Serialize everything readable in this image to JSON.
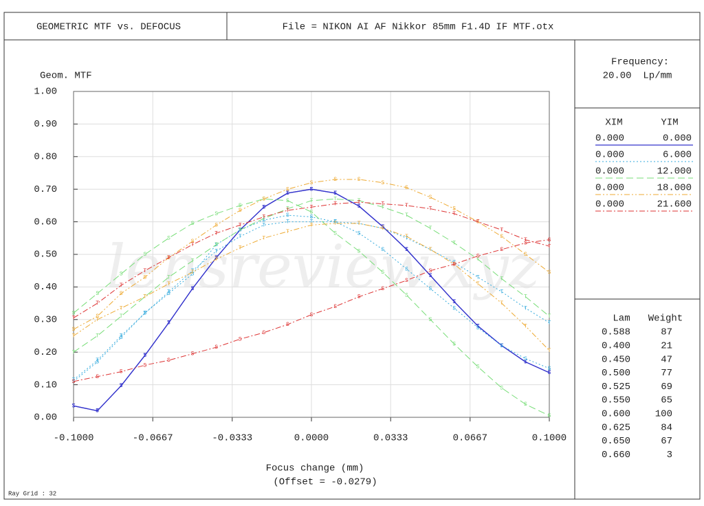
{
  "chart_data": {
    "type": "line",
    "title": "GEOMETRIC MTF vs. DEFOCUS",
    "file": "File = NIKON AI AF Nikkor 85mm F1.4D IF MTF.otx",
    "y_label": "Geom. MTF",
    "x_label": "Focus change (mm)",
    "x_note": "(Offset = -0.0279)",
    "footer": "Ray Grid : 32",
    "watermark": "lensreview.xyz",
    "frequency_label": "Frequency:",
    "frequency_value": "20.00  Lp/mm",
    "grid": true,
    "xlim": [
      -0.1,
      0.1
    ],
    "ylim": [
      0,
      1
    ],
    "xticks": [
      {
        "value": -0.1,
        "label": "-0.1000"
      },
      {
        "value": -0.0667,
        "label": "-0.0667"
      },
      {
        "value": -0.0333,
        "label": "-0.0333"
      },
      {
        "value": 0,
        "label": "0.0000"
      },
      {
        "value": 0.0333,
        "label": "0.0333"
      },
      {
        "value": 0.0667,
        "label": "0.0667"
      },
      {
        "value": 0.1,
        "label": "0.1000"
      }
    ],
    "yticks": [
      {
        "value": 0,
        "label": "0.00"
      },
      {
        "value": 0.1,
        "label": "0.10"
      },
      {
        "value": 0.2,
        "label": "0.20"
      },
      {
        "value": 0.3,
        "label": "0.30"
      },
      {
        "value": 0.4,
        "label": "0.40"
      },
      {
        "value": 0.5,
        "label": "0.50"
      },
      {
        "value": 0.6,
        "label": "0.60"
      },
      {
        "value": 0.7,
        "label": "0.70"
      },
      {
        "value": 0.8,
        "label": "0.80"
      },
      {
        "value": 0.9,
        "label": "0.90"
      },
      {
        "value": 1,
        "label": "1.00"
      }
    ],
    "x": [
      -0.1,
      -0.09,
      -0.08,
      -0.07,
      -0.06,
      -0.05,
      -0.04,
      -0.03,
      -0.02,
      -0.01,
      0,
      0.01,
      0.02,
      0.03,
      0.04,
      0.05,
      0.06,
      0.07,
      0.08,
      0.09,
      0.1
    ],
    "legend": {
      "headers": [
        "XIM",
        "YIM"
      ],
      "rows": [
        {
          "xim": "0.000",
          "yim": "0.000",
          "color": "#3333cc",
          "dash": "none"
        },
        {
          "xim": "0.000",
          "yim": "6.000",
          "color": "#33aadd",
          "dash": "2 3"
        },
        {
          "xim": "0.000",
          "yim": "12.000",
          "color": "#77dd77",
          "dash": "10 5"
        },
        {
          "xim": "0.000",
          "yim": "18.000",
          "color": "#eeaa33",
          "dash": "8 3 2 3 2 3"
        },
        {
          "xim": "0.000",
          "yim": "21.600",
          "color": "#dd3333",
          "dash": "8 3 2 3"
        }
      ]
    },
    "wavelengths": {
      "headers": [
        "Lam",
        "Weight"
      ],
      "rows": [
        [
          "0.588",
          "87"
        ],
        [
          "0.400",
          "21"
        ],
        [
          "0.450",
          "47"
        ],
        [
          "0.500",
          "77"
        ],
        [
          "0.525",
          "69"
        ],
        [
          "0.550",
          "65"
        ],
        [
          "0.600",
          "100"
        ],
        [
          "0.625",
          "84"
        ],
        [
          "0.650",
          "67"
        ],
        [
          "0.660",
          "3"
        ]
      ]
    },
    "series": [
      {
        "marker": "T",
        "color": "#3333cc",
        "dash": "none",
        "values": [
          0.035,
          0.02,
          0.097,
          0.19,
          0.29,
          0.395,
          0.49,
          0.575,
          0.645,
          0.688,
          0.7,
          0.688,
          0.648,
          0.585,
          0.515,
          0.435,
          0.355,
          0.28,
          0.22,
          0.17,
          0.137
        ]
      },
      {
        "marker": "S",
        "color": "#3333cc",
        "dash": "none",
        "values": [
          0.035,
          0.02,
          0.097,
          0.19,
          0.29,
          0.395,
          0.49,
          0.575,
          0.645,
          0.688,
          0.7,
          0.688,
          0.648,
          0.585,
          0.515,
          0.435,
          0.355,
          0.28,
          0.22,
          0.17,
          0.137
        ]
      },
      {
        "marker": "T",
        "color": "#33aadd",
        "dash": "2 3",
        "values": [
          0.115,
          0.175,
          0.25,
          0.32,
          0.385,
          0.45,
          0.51,
          0.555,
          0.59,
          0.6,
          0.6,
          0.6,
          0.595,
          0.58,
          0.55,
          0.515,
          0.475,
          0.43,
          0.385,
          0.335,
          0.29
        ]
      },
      {
        "marker": "S",
        "color": "#33aadd",
        "dash": "2 3",
        "values": [
          0.11,
          0.17,
          0.245,
          0.32,
          0.38,
          0.44,
          0.53,
          0.575,
          0.605,
          0.62,
          0.615,
          0.6,
          0.565,
          0.515,
          0.455,
          0.395,
          0.335,
          0.275,
          0.22,
          0.18,
          0.15
        ]
      },
      {
        "marker": "T",
        "color": "#77dd77",
        "dash": "10 5",
        "values": [
          0.2,
          0.25,
          0.31,
          0.37,
          0.43,
          0.48,
          0.53,
          0.575,
          0.61,
          0.64,
          0.665,
          0.67,
          0.665,
          0.645,
          0.62,
          0.58,
          0.535,
          0.485,
          0.425,
          0.37,
          0.31
        ]
      },
      {
        "marker": "S",
        "color": "#77dd77",
        "dash": "10 5",
        "values": [
          0.32,
          0.38,
          0.44,
          0.5,
          0.55,
          0.595,
          0.625,
          0.65,
          0.67,
          0.665,
          0.63,
          0.565,
          0.51,
          0.445,
          0.375,
          0.3,
          0.225,
          0.155,
          0.09,
          0.04,
          0.005
        ]
      },
      {
        "marker": "T",
        "color": "#eeaa33",
        "dash": "8 3 2 3 2 3",
        "values": [
          0.25,
          0.3,
          0.335,
          0.37,
          0.41,
          0.445,
          0.485,
          0.52,
          0.55,
          0.57,
          0.59,
          0.595,
          0.595,
          0.58,
          0.555,
          0.515,
          0.47,
          0.41,
          0.35,
          0.28,
          0.205
        ]
      },
      {
        "marker": "S",
        "color": "#eeaa33",
        "dash": "8 3 2 3 2 3",
        "values": [
          0.27,
          0.31,
          0.38,
          0.43,
          0.49,
          0.54,
          0.59,
          0.635,
          0.67,
          0.7,
          0.72,
          0.73,
          0.73,
          0.72,
          0.705,
          0.675,
          0.64,
          0.6,
          0.555,
          0.5,
          0.445
        ]
      },
      {
        "marker": "T",
        "color": "#dd3333",
        "dash": "8 3 2 3",
        "values": [
          0.305,
          0.35,
          0.405,
          0.45,
          0.49,
          0.53,
          0.565,
          0.59,
          0.615,
          0.635,
          0.645,
          0.655,
          0.66,
          0.655,
          0.65,
          0.64,
          0.625,
          0.6,
          0.575,
          0.545,
          0.525
        ]
      },
      {
        "marker": "S",
        "color": "#dd3333",
        "dash": "8 3 2 3",
        "values": [
          0.11,
          0.125,
          0.14,
          0.16,
          0.175,
          0.195,
          0.215,
          0.24,
          0.26,
          0.285,
          0.315,
          0.34,
          0.37,
          0.395,
          0.42,
          0.45,
          0.47,
          0.495,
          0.515,
          0.535,
          0.545
        ]
      }
    ]
  }
}
